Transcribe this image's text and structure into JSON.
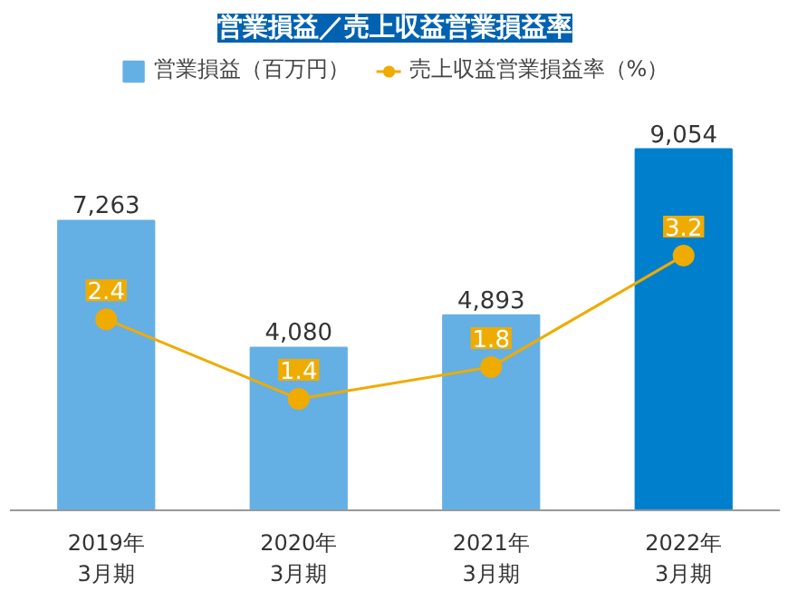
{
  "chart_data": {
    "type": "bar",
    "title": "営業損益／売上収益営業損益率",
    "categories": [
      "2019年\n3月期",
      "2020年\n3月期",
      "2021年\n3月期",
      "2022年\n3月期"
    ],
    "series": [
      {
        "name": "営業損益（百万円）",
        "colors": [
          "#64b0e4",
          "#64b0e4",
          "#64b0e4",
          "#0080cc"
        ],
        "values": [
          7263,
          4080,
          4893,
          9054
        ],
        "value_labels": [
          "7,263",
          "4,080",
          "4,893",
          "9,054"
        ]
      },
      {
        "name": "売上収益営業損益率（%）",
        "type": "line",
        "axis": "y2",
        "color": "#f0ab00",
        "values": [
          2.4,
          1.4,
          1.8,
          3.2
        ]
      }
    ],
    "data_labels": true,
    "legend": "top",
    "tick_labels": "x",
    "marker": "circle"
  }
}
